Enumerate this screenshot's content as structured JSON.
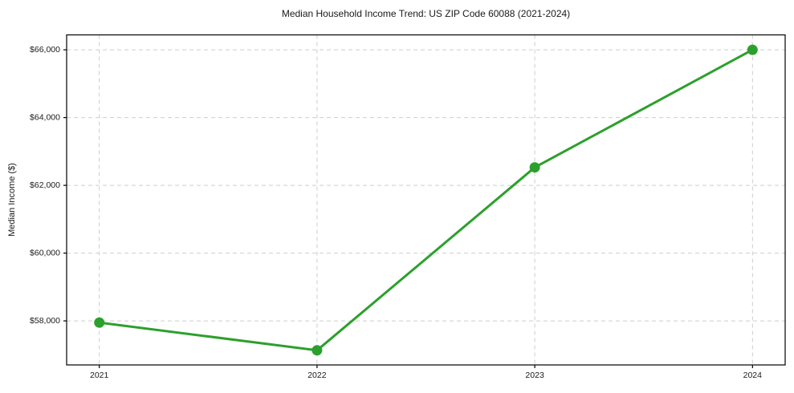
{
  "figure": {
    "title": "Median Household Income Trend: US ZIP Code 60088 (2021-2024)"
  },
  "chart_data": {
    "type": "line",
    "title": "Median Household Income Trend: US ZIP Code 60088 (2021-2024)",
    "xlabel": "",
    "ylabel": "Median Income ($)",
    "x": [
      2021,
      2022,
      2023,
      2024
    ],
    "categories": [
      "2021",
      "2022",
      "2023",
      "2024"
    ],
    "series": [
      {
        "name": "Median Household Income",
        "color": "#2ca02c",
        "values": [
          57950,
          57130,
          62530,
          66000
        ]
      }
    ],
    "xticks": {
      "values": [
        2021,
        2022,
        2023,
        2024
      ],
      "labels": [
        "2021",
        "2022",
        "2023",
        "2024"
      ]
    },
    "yticks": {
      "values": [
        58000,
        60000,
        62000,
        64000,
        66000
      ],
      "labels": [
        "$58,000",
        "$60,000",
        "$62,000",
        "$64,000",
        "$66,000"
      ]
    },
    "xlim": [
      2020.85,
      2024.15
    ],
    "ylim": [
      56700,
      66440
    ],
    "grid": true,
    "grid_style": "dashed",
    "grid_color": "#cdcdcd",
    "spine_color": "#000000",
    "background": "#ffffff",
    "line_width": 3,
    "marker": "circle",
    "marker_size": 6.5,
    "legend_position": "none"
  }
}
